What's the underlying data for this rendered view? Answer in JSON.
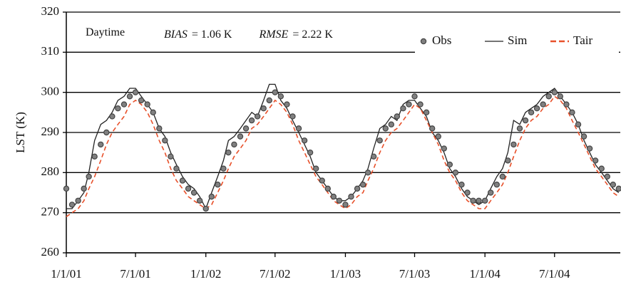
{
  "chart_data": {
    "type": "line",
    "ylabel": "LST (K)",
    "annotations": [
      "Daytime",
      "BIAS",
      "= 1.06 K",
      "RMSE",
      "= 2.22 K"
    ],
    "x": [
      "1/1/01",
      "1/16/01",
      "2/1/01",
      "2/16/01",
      "3/1/01",
      "3/16/01",
      "4/1/01",
      "4/16/01",
      "5/1/01",
      "5/16/01",
      "6/1/01",
      "6/16/01",
      "7/1/01",
      "7/16/01",
      "8/1/01",
      "8/16/01",
      "9/1/01",
      "9/16/01",
      "10/1/01",
      "10/16/01",
      "11/1/01",
      "11/16/01",
      "12/1/01",
      "12/16/01",
      "1/1/02",
      "1/16/02",
      "2/1/02",
      "2/16/02",
      "3/1/02",
      "3/16/02",
      "4/1/02",
      "4/16/02",
      "5/1/02",
      "5/16/02",
      "6/1/02",
      "6/16/02",
      "7/1/02",
      "7/16/02",
      "8/1/02",
      "8/16/02",
      "9/1/02",
      "9/16/02",
      "10/1/02",
      "10/16/02",
      "11/1/02",
      "11/16/02",
      "12/1/02",
      "12/16/02",
      "1/1/03",
      "1/16/03",
      "2/1/03",
      "2/16/03",
      "3/1/03",
      "3/16/03",
      "4/1/03",
      "4/16/03",
      "5/1/03",
      "5/16/03",
      "6/1/03",
      "6/16/03",
      "7/1/03",
      "7/16/03",
      "8/1/03",
      "8/16/03",
      "9/1/03",
      "9/16/03",
      "10/1/03",
      "10/16/03",
      "11/1/03",
      "11/16/03",
      "12/1/03",
      "12/16/03",
      "1/1/04",
      "1/16/04",
      "2/1/04",
      "2/16/04",
      "3/1/04",
      "3/16/04",
      "4/1/04",
      "4/16/04",
      "5/1/04",
      "5/16/04",
      "6/1/04",
      "6/16/04",
      "7/1/04",
      "7/16/04",
      "8/1/04",
      "8/16/04",
      "9/1/04",
      "9/16/04",
      "10/1/04",
      "10/16/04",
      "11/1/04",
      "11/16/04",
      "12/1/04",
      "12/16/04"
    ],
    "series": [
      {
        "name": "Obs",
        "style": "markers",
        "color": "#808080",
        "edge": "#444444",
        "values": [
          276,
          272,
          273,
          276,
          279,
          284,
          287,
          290,
          294,
          296,
          297,
          299,
          300,
          298,
          297,
          295,
          291,
          288,
          284,
          281,
          278,
          276,
          275,
          273,
          271,
          274,
          277,
          281,
          285,
          287,
          289,
          291,
          293,
          294,
          296,
          298,
          300,
          299,
          297,
          294,
          291,
          288,
          285,
          281,
          278,
          276,
          274,
          273,
          272,
          274,
          276,
          277,
          280,
          284,
          288,
          291,
          292,
          294,
          296,
          297,
          299,
          297,
          295,
          291,
          289,
          286,
          282,
          280,
          277,
          275,
          273,
          273,
          273,
          275,
          277,
          279,
          283,
          287,
          291,
          293,
          295,
          296,
          297,
          299,
          300,
          299,
          297,
          295,
          292,
          289,
          286,
          283,
          281,
          279,
          277,
          276
        ]
      },
      {
        "name": "Sim",
        "style": "solid",
        "color": "#222222",
        "values": [
          271,
          271,
          273,
          275,
          280,
          288,
          292,
          293,
          295,
          298,
          299,
          301,
          301,
          299,
          297,
          295,
          291,
          289,
          285,
          282,
          279,
          277,
          276,
          274,
          271,
          275,
          279,
          283,
          288,
          289,
          291,
          293,
          295,
          294,
          298,
          302,
          302,
          298,
          296,
          293,
          290,
          287,
          284,
          280,
          278,
          276,
          274,
          273,
          273,
          274,
          276,
          278,
          281,
          286,
          291,
          292,
          294,
          293,
          297,
          298,
          298,
          296,
          294,
          290,
          288,
          285,
          281,
          279,
          276,
          274,
          273,
          272,
          273,
          276,
          279,
          281,
          285,
          293,
          292,
          295,
          296,
          297,
          299,
          300,
          301,
          299,
          297,
          295,
          292,
          288,
          285,
          282,
          280,
          278,
          276,
          275
        ]
      },
      {
        "name": "Tair",
        "style": "dashed",
        "color": "#e8502a",
        "values": [
          269,
          270,
          271,
          273,
          276,
          279,
          283,
          287,
          290,
          292,
          294,
          297,
          298,
          297,
          295,
          292,
          288,
          285,
          281,
          278,
          276,
          274,
          273,
          272,
          271,
          272,
          275,
          278,
          281,
          284,
          286,
          288,
          291,
          292,
          294,
          296,
          298,
          297,
          295,
          292,
          288,
          285,
          282,
          279,
          277,
          275,
          273,
          272,
          271,
          272,
          274,
          275,
          278,
          281,
          285,
          288,
          290,
          291,
          293,
          295,
          297,
          296,
          293,
          290,
          287,
          283,
          280,
          278,
          275,
          273,
          272,
          271,
          271,
          273,
          275,
          277,
          280,
          284,
          288,
          291,
          293,
          294,
          296,
          297,
          299,
          298,
          296,
          293,
          290,
          287,
          284,
          281,
          279,
          277,
          275,
          274
        ]
      }
    ],
    "xlim": [
      "1/1/01",
      "12/20/04"
    ],
    "xticks": [
      "1/1/01",
      "7/1/01",
      "1/1/02",
      "7/1/02",
      "1/1/03",
      "7/1/03",
      "1/1/04",
      "7/1/04"
    ],
    "ylim": [
      260,
      320
    ],
    "yticks": [
      260,
      270,
      280,
      290,
      300,
      310,
      320
    ],
    "grid": true,
    "legend": "top-right"
  }
}
